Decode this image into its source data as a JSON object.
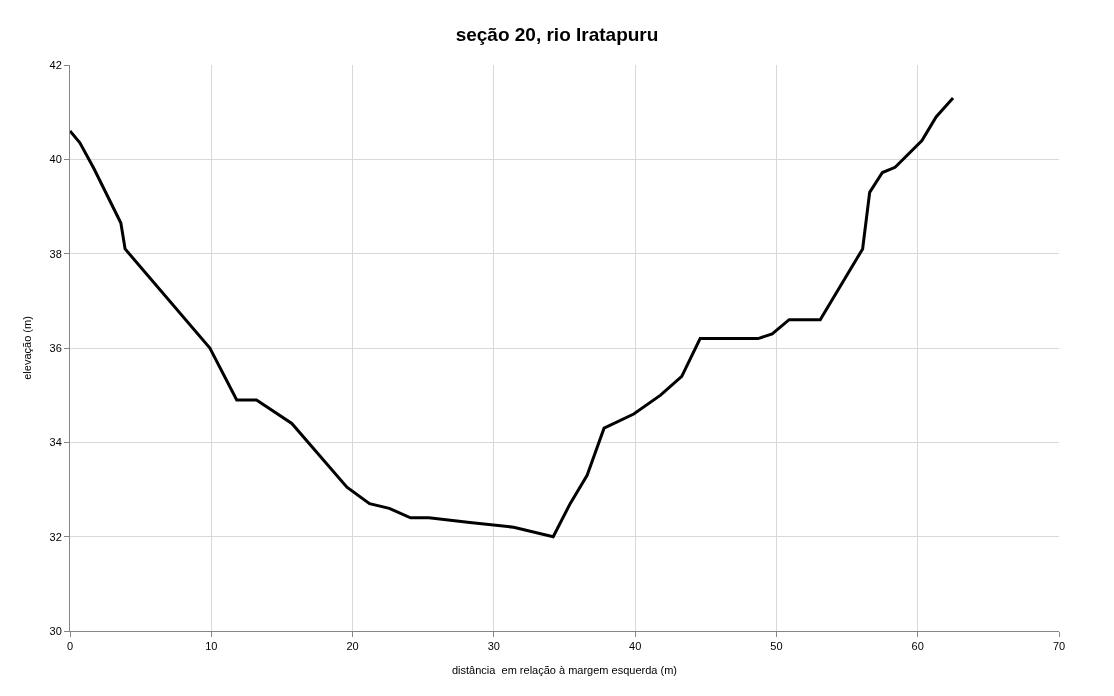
{
  "chart_data": {
    "type": "line",
    "title": "seção 20, rio Iratapuru",
    "xlabel": "distância  em relação à margem esquerda (m)",
    "ylabel": "elevação (m)",
    "x": [
      0,
      0.7,
      1.7,
      3.6,
      3.9,
      9.9,
      11.8,
      13.2,
      15.7,
      19.6,
      21.2,
      22.6,
      24.1,
      25.4,
      28.3,
      31.4,
      34.2,
      35.4,
      36.6,
      37.8,
      39.9,
      41.8,
      43.3,
      44.6,
      48.7,
      49.7,
      50.9,
      53.1,
      56.1,
      56.6,
      57.5,
      58.4,
      60.3,
      61.3,
      62.5
    ],
    "series": [
      {
        "color": "#000000",
        "values": [
          40.6,
          40.35,
          39.8,
          38.65,
          38.1,
          36.0,
          34.9,
          34.9,
          34.4,
          33.05,
          32.7,
          32.6,
          32.4,
          32.4,
          32.3,
          32.2,
          32.0,
          32.7,
          33.3,
          34.3,
          34.6,
          35.0,
          35.4,
          36.2,
          36.2,
          36.3,
          36.6,
          36.6,
          38.1,
          39.3,
          39.72,
          39.83,
          40.4,
          40.9,
          41.3
        ]
      }
    ],
    "xlim": [
      0,
      70
    ],
    "xticks": [
      0,
      10,
      20,
      30,
      40,
      50,
      60,
      70
    ],
    "ylim": [
      30,
      42
    ],
    "yticks": [
      30,
      32,
      34,
      36,
      38,
      40,
      42
    ],
    "grid": true,
    "marker": "none",
    "line_style": "solid"
  }
}
